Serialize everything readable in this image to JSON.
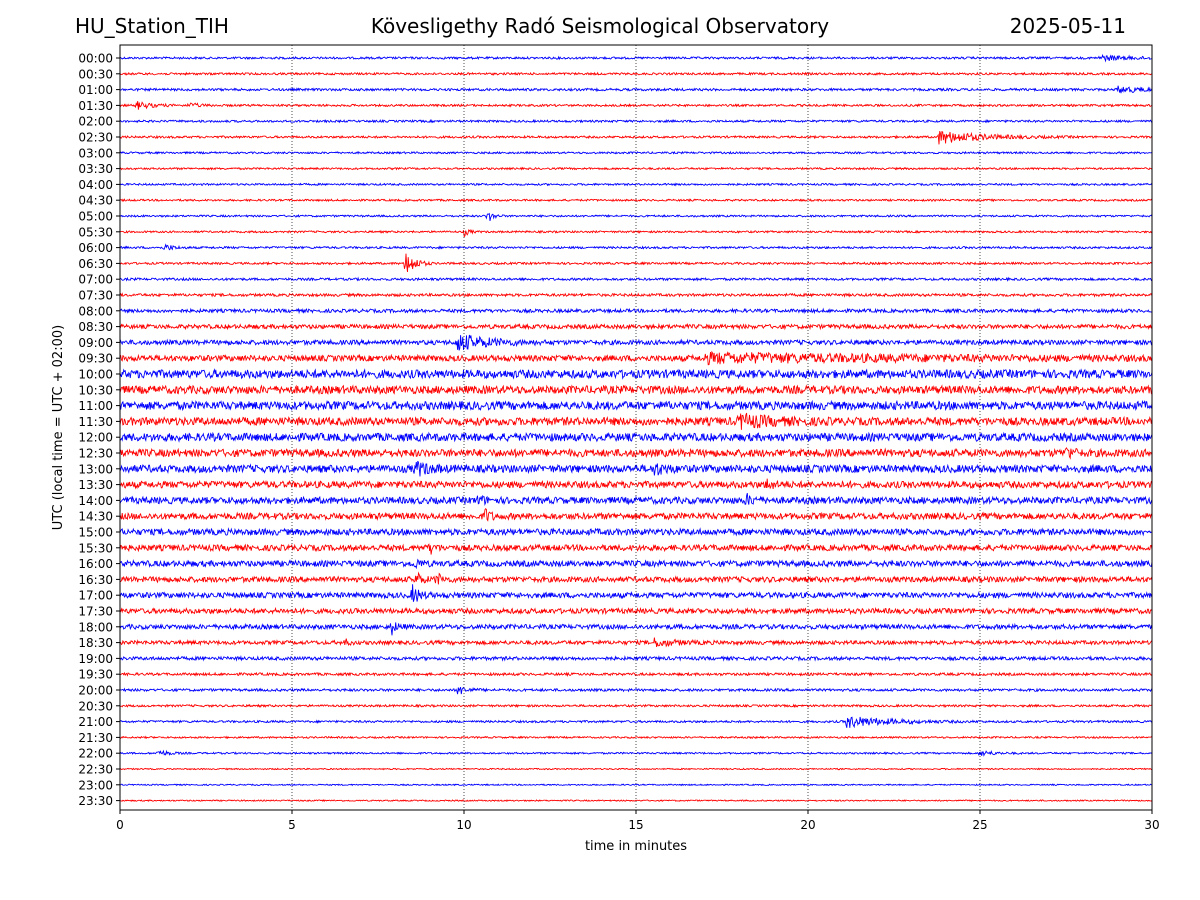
{
  "header": {
    "station": "HU_Station_TIH",
    "title": "Kövesligethy Radó Seismological Observatory",
    "date": "2025-05-11"
  },
  "chart_data": {
    "type": "line",
    "xlabel": "time in minutes",
    "ylabel": "UTC (local time = UTC + 02:00)",
    "xlim": [
      0,
      30
    ],
    "xticks": [
      "0",
      "5",
      "10",
      "15",
      "20",
      "25",
      "30"
    ],
    "grid": "vertical dotted lines at each x tick",
    "colors": {
      "even_rows": "#0000ff",
      "odd_rows": "#ff0000"
    },
    "rows": [
      {
        "label": "00:00",
        "noise": 0.25,
        "events": [
          {
            "t": 28.5,
            "amp": 0.6,
            "dur": 2.0
          }
        ]
      },
      {
        "label": "00:30",
        "noise": 0.25,
        "events": []
      },
      {
        "label": "01:00",
        "noise": 0.28,
        "events": [
          {
            "t": 29.0,
            "amp": 0.8,
            "dur": 1.5
          }
        ]
      },
      {
        "label": "01:30",
        "noise": 0.25,
        "events": [
          {
            "t": 0.5,
            "amp": 0.9,
            "dur": 0.8
          },
          {
            "t": 2.0,
            "amp": 0.6,
            "dur": 0.6
          }
        ]
      },
      {
        "label": "02:00",
        "noise": 0.25,
        "events": []
      },
      {
        "label": "02:30",
        "noise": 0.25,
        "events": [
          {
            "t": 23.8,
            "amp": 1.6,
            "dur": 2.5
          }
        ]
      },
      {
        "label": "03:00",
        "noise": 0.22,
        "events": []
      },
      {
        "label": "03:30",
        "noise": 0.22,
        "events": []
      },
      {
        "label": "04:00",
        "noise": 0.22,
        "events": []
      },
      {
        "label": "04:30",
        "noise": 0.22,
        "events": []
      },
      {
        "label": "05:00",
        "noise": 0.22,
        "events": [
          {
            "t": 10.7,
            "amp": 1.5,
            "dur": 0.3
          }
        ]
      },
      {
        "label": "05:30",
        "noise": 0.22,
        "events": [
          {
            "t": 10.0,
            "amp": 1.0,
            "dur": 0.3
          }
        ]
      },
      {
        "label": "06:00",
        "noise": 0.25,
        "events": [
          {
            "t": 1.3,
            "amp": 0.8,
            "dur": 0.5
          }
        ]
      },
      {
        "label": "06:30",
        "noise": 0.25,
        "events": [
          {
            "t": 8.3,
            "amp": 3.6,
            "dur": 0.5
          }
        ]
      },
      {
        "label": "07:00",
        "noise": 0.28,
        "events": []
      },
      {
        "label": "07:30",
        "noise": 0.32,
        "events": []
      },
      {
        "label": "08:00",
        "noise": 0.4,
        "events": []
      },
      {
        "label": "08:30",
        "noise": 0.5,
        "events": []
      },
      {
        "label": "09:00",
        "noise": 0.55,
        "events": [
          {
            "t": 9.8,
            "amp": 2.0,
            "dur": 1.8
          }
        ]
      },
      {
        "label": "09:30",
        "noise": 0.7,
        "events": [
          {
            "t": 17.0,
            "amp": 0.9,
            "dur": 13.0
          }
        ]
      },
      {
        "label": "10:00",
        "noise": 1.0,
        "events": []
      },
      {
        "label": "10:30",
        "noise": 0.95,
        "events": []
      },
      {
        "label": "11:00",
        "noise": 1.0,
        "events": []
      },
      {
        "label": "11:30",
        "noise": 0.95,
        "events": [
          {
            "t": 18.0,
            "amp": 1.4,
            "dur": 1.8
          }
        ]
      },
      {
        "label": "12:00",
        "noise": 0.95,
        "events": []
      },
      {
        "label": "12:30",
        "noise": 0.9,
        "events": [
          {
            "t": 27.5,
            "amp": 1.3,
            "dur": 0.4
          }
        ]
      },
      {
        "label": "13:00",
        "noise": 0.9,
        "events": [
          {
            "t": 8.6,
            "amp": 1.4,
            "dur": 0.8
          },
          {
            "t": 15.5,
            "amp": 1.4,
            "dur": 0.6
          }
        ]
      },
      {
        "label": "13:30",
        "noise": 0.8,
        "events": [
          {
            "t": 18.8,
            "amp": 1.1,
            "dur": 0.4
          }
        ]
      },
      {
        "label": "14:00",
        "noise": 0.8,
        "events": [
          {
            "t": 10.4,
            "amp": 1.3,
            "dur": 0.3
          },
          {
            "t": 18.2,
            "amp": 1.2,
            "dur": 0.4
          }
        ]
      },
      {
        "label": "14:30",
        "noise": 0.75,
        "events": [
          {
            "t": 10.6,
            "amp": 1.8,
            "dur": 0.3
          }
        ]
      },
      {
        "label": "15:00",
        "noise": 0.75,
        "events": []
      },
      {
        "label": "15:30",
        "noise": 0.7,
        "events": [
          {
            "t": 9.0,
            "amp": 1.3,
            "dur": 0.3
          }
        ]
      },
      {
        "label": "16:00",
        "noise": 0.7,
        "events": [
          {
            "t": 8.6,
            "amp": 1.0,
            "dur": 0.3
          }
        ]
      },
      {
        "label": "16:30",
        "noise": 0.65,
        "events": [
          {
            "t": 8.6,
            "amp": 1.8,
            "dur": 0.3
          },
          {
            "t": 9.2,
            "amp": 1.6,
            "dur": 0.3
          }
        ]
      },
      {
        "label": "17:00",
        "noise": 0.65,
        "events": [
          {
            "t": 8.5,
            "amp": 2.2,
            "dur": 0.4
          }
        ]
      },
      {
        "label": "17:30",
        "noise": 0.6,
        "events": []
      },
      {
        "label": "18:00",
        "noise": 0.55,
        "events": [
          {
            "t": 7.9,
            "amp": 1.6,
            "dur": 0.3
          }
        ]
      },
      {
        "label": "18:30",
        "noise": 0.45,
        "events": [
          {
            "t": 6.5,
            "amp": 0.9,
            "dur": 0.3
          },
          {
            "t": 15.5,
            "amp": 0.9,
            "dur": 1.3
          }
        ]
      },
      {
        "label": "19:00",
        "noise": 0.4,
        "events": []
      },
      {
        "label": "19:30",
        "noise": 0.3,
        "events": []
      },
      {
        "label": "20:00",
        "noise": 0.3,
        "events": [
          {
            "t": 9.8,
            "amp": 1.3,
            "dur": 0.5
          }
        ]
      },
      {
        "label": "20:30",
        "noise": 0.25,
        "events": []
      },
      {
        "label": "21:00",
        "noise": 0.25,
        "events": [
          {
            "t": 21.1,
            "amp": 1.4,
            "dur": 2.5
          }
        ]
      },
      {
        "label": "21:30",
        "noise": 0.2,
        "events": []
      },
      {
        "label": "22:00",
        "noise": 0.2,
        "events": [
          {
            "t": 1.1,
            "amp": 0.8,
            "dur": 0.6
          },
          {
            "t": 25.0,
            "amp": 0.7,
            "dur": 0.8
          }
        ]
      },
      {
        "label": "22:30",
        "noise": 0.15,
        "events": []
      },
      {
        "label": "23:00",
        "noise": 0.15,
        "events": []
      },
      {
        "label": "23:30",
        "noise": 0.15,
        "events": []
      }
    ]
  }
}
